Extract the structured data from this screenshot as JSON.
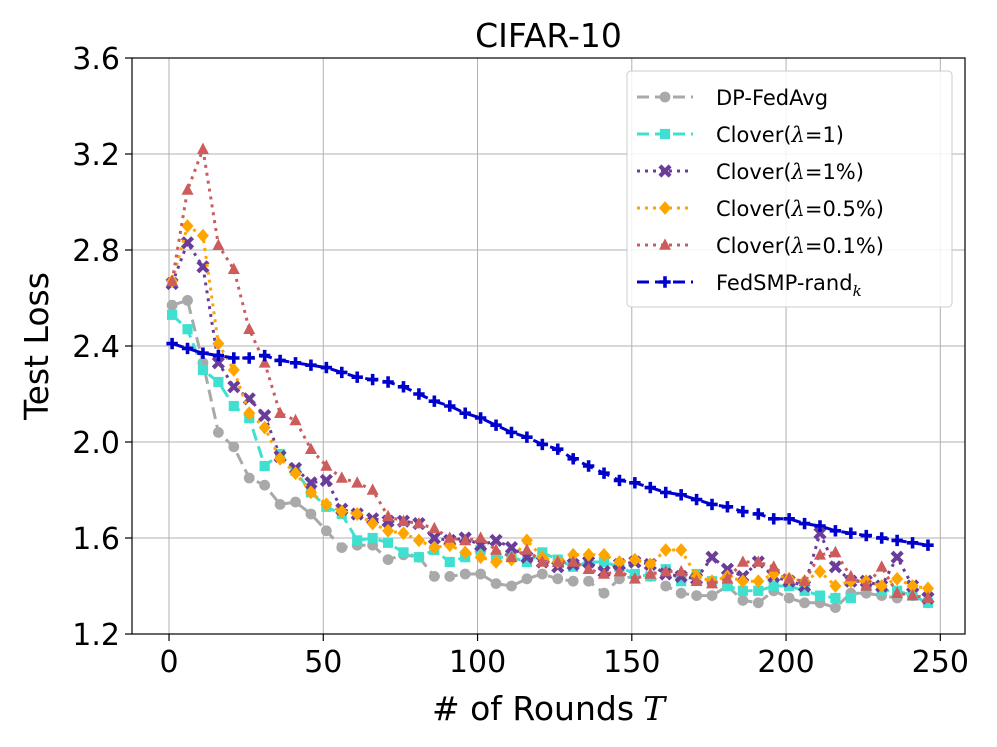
{
  "chart_data": {
    "type": "line",
    "title": "CIFAR-10",
    "xlabel": "# of Rounds",
    "xlabel_var": "T",
    "ylabel": "Test Loss",
    "xlim": [
      -12,
      258
    ],
    "ylim": [
      1.2,
      3.6
    ],
    "xticks": [
      0,
      50,
      100,
      150,
      200,
      250
    ],
    "yticks": [
      1.2,
      1.6,
      2.0,
      2.4,
      2.8,
      3.2,
      3.6
    ],
    "xtick_labels": [
      "0",
      "50",
      "100",
      "150",
      "200",
      "250"
    ],
    "ytick_labels": [
      "1.2",
      "1.6",
      "2.0",
      "2.4",
      "2.8",
      "3.2",
      "3.6"
    ],
    "grid": true,
    "legend_position": "top-right",
    "x": [
      1,
      6,
      11,
      16,
      21,
      26,
      31,
      36,
      41,
      46,
      51,
      56,
      61,
      66,
      71,
      76,
      81,
      86,
      91,
      96,
      101,
      106,
      111,
      116,
      121,
      126,
      131,
      136,
      141,
      146,
      151,
      156,
      161,
      166,
      171,
      176,
      181,
      186,
      191,
      196,
      201,
      206,
      211,
      216,
      221,
      226,
      231,
      236,
      241,
      246
    ],
    "series": [
      {
        "name_parts": [
          "DP-FedAvg"
        ],
        "color": "#a9a9a9",
        "marker": "circle",
        "dash": "dashed",
        "values": [
          2.57,
          2.59,
          2.33,
          2.04,
          1.98,
          1.85,
          1.82,
          1.74,
          1.75,
          1.7,
          1.63,
          1.56,
          1.57,
          1.57,
          1.51,
          1.53,
          1.52,
          1.44,
          1.44,
          1.45,
          1.45,
          1.41,
          1.4,
          1.43,
          1.45,
          1.43,
          1.42,
          1.42,
          1.37,
          1.43,
          1.44,
          1.44,
          1.4,
          1.37,
          1.36,
          1.36,
          1.4,
          1.34,
          1.33,
          1.38,
          1.35,
          1.33,
          1.33,
          1.31,
          1.37,
          1.37,
          1.36,
          1.35,
          1.36,
          1.33
        ]
      },
      {
        "name_parts": [
          "Clover",
          "(",
          "λ",
          "=1)"
        ],
        "color": "#40e0d0",
        "marker": "square",
        "dash": "dashed",
        "values": [
          2.53,
          2.47,
          2.3,
          2.25,
          2.15,
          2.1,
          1.9,
          1.95,
          1.88,
          1.79,
          1.73,
          1.7,
          1.59,
          1.6,
          1.58,
          1.54,
          1.52,
          1.55,
          1.5,
          1.52,
          1.55,
          1.52,
          1.52,
          1.5,
          1.54,
          1.51,
          1.48,
          1.5,
          1.5,
          1.48,
          1.45,
          1.44,
          1.47,
          1.42,
          1.45,
          1.42,
          1.4,
          1.38,
          1.38,
          1.4,
          1.4,
          1.38,
          1.36,
          1.35,
          1.35,
          1.4,
          1.38,
          1.38,
          1.36,
          1.33
        ]
      },
      {
        "name_parts": [
          "Clover",
          "(",
          "λ",
          "=1%)"
        ],
        "color": "#6a3d9a",
        "marker": "x",
        "dash": "dotted",
        "values": [
          2.66,
          2.83,
          2.73,
          2.33,
          2.23,
          2.18,
          2.11,
          1.94,
          1.89,
          1.83,
          1.84,
          1.72,
          1.7,
          1.68,
          1.67,
          1.67,
          1.66,
          1.6,
          1.59,
          1.6,
          1.57,
          1.59,
          1.56,
          1.52,
          1.5,
          1.48,
          1.49,
          1.5,
          1.46,
          1.49,
          1.5,
          1.49,
          1.45,
          1.44,
          1.43,
          1.52,
          1.47,
          1.44,
          1.5,
          1.44,
          1.42,
          1.4,
          1.62,
          1.48,
          1.42,
          1.42,
          1.4,
          1.52,
          1.4,
          1.35
        ]
      },
      {
        "name_parts": [
          "Clover",
          "(",
          "λ",
          "=0.5%)"
        ],
        "color": "#ffa500",
        "marker": "diamond",
        "dash": "dotted",
        "values": [
          2.67,
          2.9,
          2.86,
          2.41,
          2.3,
          2.12,
          2.06,
          1.93,
          1.87,
          1.79,
          1.74,
          1.71,
          1.7,
          1.66,
          1.63,
          1.62,
          1.59,
          1.56,
          1.57,
          1.54,
          1.52,
          1.5,
          1.51,
          1.59,
          1.52,
          1.5,
          1.53,
          1.53,
          1.53,
          1.5,
          1.51,
          1.49,
          1.55,
          1.55,
          1.44,
          1.42,
          1.44,
          1.42,
          1.42,
          1.45,
          1.43,
          1.42,
          1.46,
          1.4,
          1.42,
          1.42,
          1.4,
          1.43,
          1.4,
          1.39
        ]
      },
      {
        "name_parts": [
          "Clover",
          "(",
          "λ",
          "=0.1%)"
        ],
        "color": "#cd5c5c",
        "marker": "triangle",
        "dash": "dotted",
        "values": [
          2.67,
          3.05,
          3.22,
          2.82,
          2.72,
          2.47,
          2.33,
          2.12,
          2.09,
          1.97,
          1.9,
          1.85,
          1.83,
          1.8,
          1.69,
          1.67,
          1.66,
          1.64,
          1.6,
          1.59,
          1.6,
          1.55,
          1.52,
          1.55,
          1.5,
          1.5,
          1.5,
          1.47,
          1.45,
          1.46,
          1.43,
          1.45,
          1.46,
          1.46,
          1.42,
          1.41,
          1.43,
          1.5,
          1.5,
          1.48,
          1.43,
          1.42,
          1.53,
          1.54,
          1.44,
          1.4,
          1.48,
          1.37,
          1.36,
          1.35
        ]
      },
      {
        "name_parts": [
          "FedSMP-rand",
          "k"
        ],
        "color": "#0000cd",
        "marker": "plus",
        "dash": "dashed",
        "values": [
          2.41,
          2.39,
          2.37,
          2.36,
          2.35,
          2.35,
          2.36,
          2.34,
          2.33,
          2.32,
          2.31,
          2.29,
          2.27,
          2.26,
          2.25,
          2.23,
          2.2,
          2.17,
          2.15,
          2.12,
          2.1,
          2.07,
          2.04,
          2.02,
          1.99,
          1.97,
          1.93,
          1.9,
          1.87,
          1.84,
          1.83,
          1.81,
          1.79,
          1.78,
          1.76,
          1.74,
          1.73,
          1.71,
          1.7,
          1.68,
          1.68,
          1.66,
          1.65,
          1.63,
          1.62,
          1.61,
          1.6,
          1.59,
          1.58,
          1.57
        ]
      }
    ]
  }
}
